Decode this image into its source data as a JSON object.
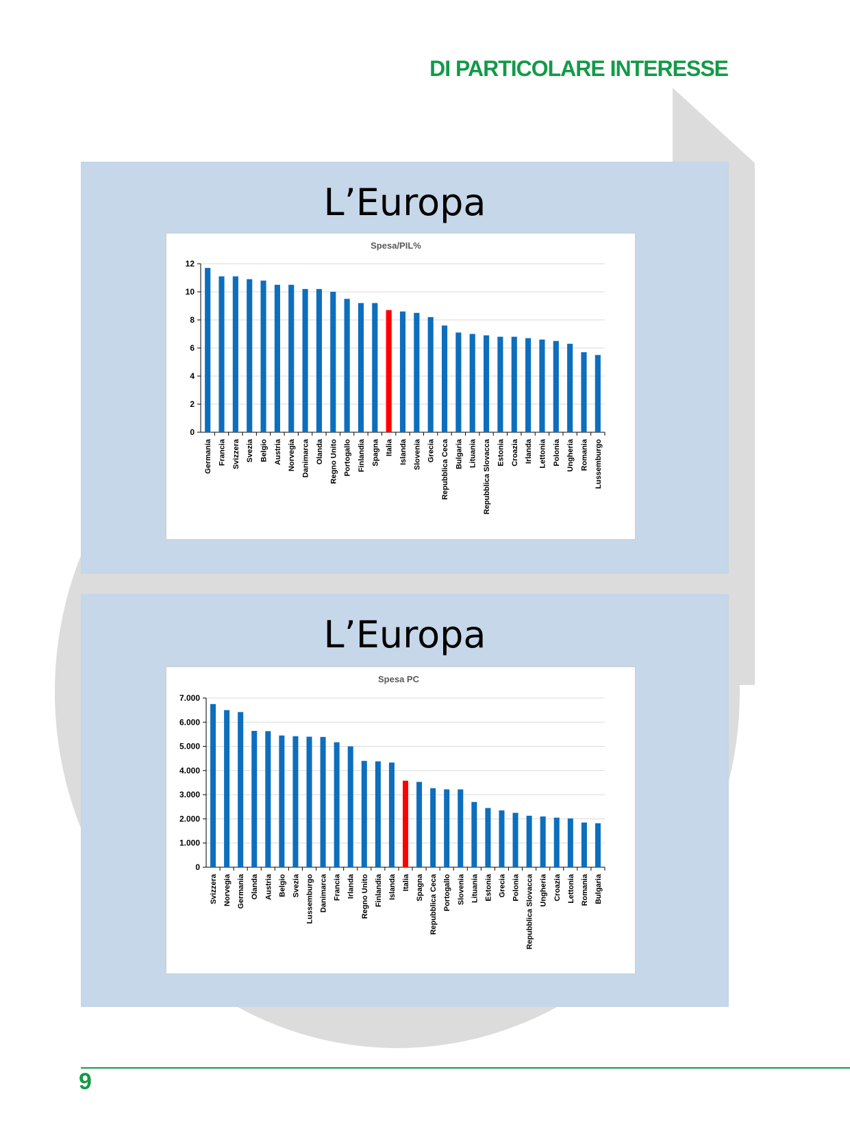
{
  "header": {
    "title": "DI PARTICOLARE INTERESSE"
  },
  "footer": {
    "page_number": "9"
  },
  "colors": {
    "accent_green": "#139a48",
    "slide_bg": "#c5d7e8",
    "bar_blue": "#0d6ebd",
    "bar_highlight": "#ff0000",
    "decor_grey": "#dcdcdc"
  },
  "slides": [
    {
      "title": "L’Europa"
    },
    {
      "title": "L’Europa"
    }
  ],
  "chart_data": [
    {
      "type": "bar",
      "title": "Spesa/PIL%",
      "xlabel": "",
      "ylabel": "",
      "ylim": [
        0,
        12
      ],
      "yticks": [
        "0",
        "2",
        "4",
        "6",
        "8",
        "10",
        "12"
      ],
      "grid": true,
      "highlight": "Italia",
      "categories": [
        "Germania",
        "Francia",
        "Svizzera",
        "Svezia",
        "Belgio",
        "Austria",
        "Norvegia",
        "Danimarca",
        "Olanda",
        "Regno Unito",
        "Portogallo",
        "Finlandia",
        "Spagna",
        "Italia",
        "Islanda",
        "Slovenia",
        "Grecia",
        "Repubblica Ceca",
        "Bulgaria",
        "Lituania",
        "Repubblica Slovacca",
        "Estonia",
        "Croazia",
        "Irlanda",
        "Lettonia",
        "Polonia",
        "Ungheria",
        "Romania",
        "Lussemburgo"
      ],
      "values": [
        11.7,
        11.1,
        11.1,
        10.9,
        10.8,
        10.5,
        10.5,
        10.2,
        10.2,
        10.0,
        9.5,
        9.2,
        9.2,
        8.7,
        8.6,
        8.5,
        8.2,
        7.6,
        7.1,
        7.0,
        6.9,
        6.8,
        6.8,
        6.7,
        6.6,
        6.5,
        6.3,
        5.7,
        5.5
      ]
    },
    {
      "type": "bar",
      "title": "Spesa PC",
      "xlabel": "",
      "ylabel": "",
      "ylim": [
        0,
        7000
      ],
      "yticks": [
        "0",
        "1.000",
        "2.000",
        "3.000",
        "4.000",
        "5.000",
        "6.000",
        "7.000"
      ],
      "grid": true,
      "highlight": "Italia",
      "categories": [
        "Svizzera",
        "Norvegia",
        "Germania",
        "Olanda",
        "Austria",
        "Belgio",
        "Svezia",
        "Lussemburgo",
        "Danimarca",
        "Francia",
        "Irlanda",
        "Regno Unito",
        "Finlandia",
        "Islanda",
        "Italia",
        "Spagna",
        "Repubblica Ceca",
        "Portogallo",
        "Slovenia",
        "Lituania",
        "Estonia",
        "Grecia",
        "Polonia",
        "Repubblica Slovacca",
        "Ungheria",
        "Croazia",
        "Lettonia",
        "Romania",
        "Bulgaria"
      ],
      "values": [
        6750,
        6500,
        6420,
        5640,
        5630,
        5450,
        5420,
        5400,
        5390,
        5170,
        5000,
        4400,
        4380,
        4330,
        3580,
        3530,
        3270,
        3220,
        3220,
        2700,
        2450,
        2350,
        2250,
        2130,
        2100,
        2050,
        2020,
        1850,
        1820
      ]
    }
  ]
}
